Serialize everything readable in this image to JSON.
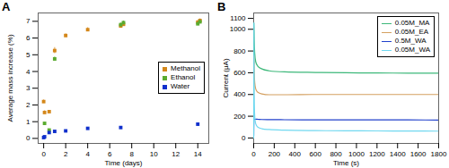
{
  "chart_data": [
    {
      "type": "scatter",
      "title": "A",
      "xlabel": "Time (days)",
      "ylabel": "Average mass increase (%)",
      "xlim": [
        -0.5,
        15
      ],
      "ylim": [
        -0.3,
        7.5
      ],
      "xticks": [
        0,
        2,
        4,
        6,
        8,
        10,
        12,
        14
      ],
      "yticks": [
        0,
        1,
        2,
        3,
        4,
        5,
        6,
        7
      ],
      "legend": "center right",
      "marker": "square",
      "series": [
        {
          "name": "Methanol",
          "color": "#d4871a",
          "x": [
            0,
            0.08,
            0.5,
            1,
            2,
            4,
            7,
            7.25,
            14,
            14.2
          ],
          "values": [
            2.2,
            1.55,
            1.6,
            5.25,
            6.15,
            6.5,
            6.72,
            6.82,
            6.95,
            7.05
          ],
          "yerr": [
            0.1,
            0.1,
            0.05,
            0.18,
            0.1,
            0.12,
            0.1,
            0.1,
            0.1,
            0.1
          ]
        },
        {
          "name": "Ethanol",
          "color": "#5aab30",
          "x": [
            0.08,
            0.5,
            1,
            7,
            7.25,
            14,
            14.2
          ],
          "values": [
            0.9,
            0.5,
            4.75,
            6.8,
            6.92,
            6.85,
            6.97
          ],
          "yerr": [
            0.05,
            0.05,
            0.12,
            0.1,
            0.1,
            0.1,
            0.1
          ]
        },
        {
          "name": "Water",
          "color": "#1030cc",
          "x": [
            0,
            0.08,
            0.5,
            1,
            2,
            4,
            7,
            14
          ],
          "values": [
            0.05,
            0.1,
            0.35,
            0.42,
            0.45,
            0.6,
            0.65,
            0.85
          ],
          "yerr": [
            0.02,
            0.02,
            0.03,
            0.03,
            0.03,
            0.05,
            0.05,
            0.05
          ]
        }
      ]
    },
    {
      "type": "line",
      "title": "B",
      "xlabel": "Time (s)",
      "ylabel": "Current (μA)",
      "xlim": [
        0,
        1800
      ],
      "ylim": [
        -50,
        1150
      ],
      "xticks": [
        0,
        200,
        400,
        600,
        800,
        1000,
        1200,
        1400,
        1600,
        1800
      ],
      "yticks": [
        0,
        200,
        400,
        600,
        800,
        1000,
        1100
      ],
      "legend": "upper right",
      "series": [
        {
          "name": "0.05M_MA",
          "color": "#3db87a",
          "x": [
            0,
            2,
            5,
            10,
            20,
            40,
            80,
            150,
            300,
            600,
            900,
            1200,
            1500,
            1800
          ],
          "values": [
            570,
            1060,
            900,
            780,
            700,
            660,
            635,
            618,
            608,
            603,
            600,
            598,
            597,
            596
          ]
        },
        {
          "name": "0.05M_EA",
          "color": "#d4a060",
          "x": [
            0,
            2,
            5,
            10,
            20,
            40,
            80,
            150,
            300,
            600,
            900,
            1200,
            1500,
            1800
          ],
          "values": [
            310,
            760,
            620,
            510,
            450,
            420,
            405,
            398,
            398,
            400,
            400,
            400,
            400,
            400
          ]
        },
        {
          "name": "0.5M_WA",
          "color": "#2040cc",
          "x": [
            0,
            2,
            5,
            10,
            20,
            40,
            80,
            150,
            300,
            600,
            900,
            1200,
            1500,
            1800
          ],
          "values": [
            20,
            170,
            170,
            172,
            173,
            172,
            170,
            169,
            168,
            167,
            167,
            166,
            166,
            165
          ]
        },
        {
          "name": "0.05M_WA",
          "color": "#70d8f0",
          "x": [
            0,
            2,
            5,
            10,
            20,
            40,
            80,
            150,
            300,
            600,
            900,
            1200,
            1500,
            1800
          ],
          "values": [
            0,
            1060,
            400,
            200,
            130,
            100,
            85,
            78,
            72,
            68,
            66,
            65,
            64,
            63
          ]
        }
      ]
    }
  ]
}
